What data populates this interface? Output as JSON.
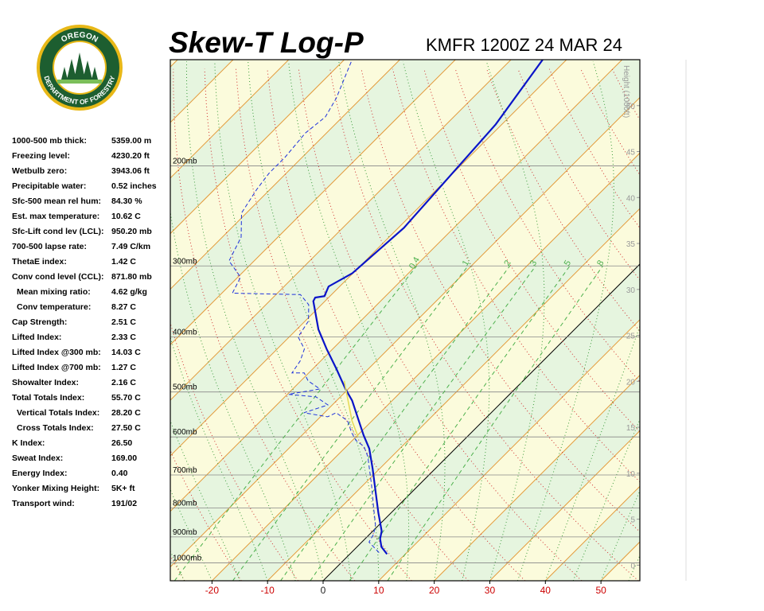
{
  "logo": {
    "top": "OREGON",
    "bottom": "DEPARTMENT OF FORESTRY"
  },
  "stats": [
    {
      "label": "1000-500 mb thick:",
      "value": "5359.00 m"
    },
    {
      "label": "Freezing level:",
      "value": "4230.20 ft"
    },
    {
      "label": "Wetbulb zero:",
      "value": "3943.06 ft"
    },
    {
      "label": "Precipitable water:",
      "value": "0.52 inches"
    },
    {
      "label": "Sfc-500 mean rel hum:",
      "value": "84.30 %"
    },
    {
      "label": "Est. max temperature:",
      "value": "10.62 C"
    },
    {
      "label": "Sfc-Lift cond lev (LCL):",
      "value": "950.20 mb"
    },
    {
      "label": "700-500 lapse rate:",
      "value": "7.49 C/km"
    },
    {
      "label": "ThetaE index:",
      "value": "1.42 C"
    },
    {
      "label": "Conv cond level (CCL):",
      "value": "871.80 mb"
    },
    {
      "label": "Mean mixing ratio:",
      "value": "4.62 g/kg"
    },
    {
      "label": "Conv temperature:",
      "value": "8.27 C"
    },
    {
      "label": "Cap Strength:",
      "value": "2.51 C"
    },
    {
      "label": "Lifted Index:",
      "value": "2.33 C"
    },
    {
      "label": "Lifted Index @300 mb:",
      "value": "14.03 C"
    },
    {
      "label": "Lifted Index @700 mb:",
      "value": "1.27 C"
    },
    {
      "label": "Showalter Index:",
      "value": "2.16 C"
    },
    {
      "label": "Total Totals Index:",
      "value": "55.70 C"
    },
    {
      "label": "Vertical Totals Index:",
      "value": "28.20 C"
    },
    {
      "label": "Cross Totals Index:",
      "value": "27.50 C"
    },
    {
      "label": "K Index:",
      "value": "26.50"
    },
    {
      "label": "Sweat Index:",
      "value": "169.00"
    },
    {
      "label": "Energy Index:",
      "value": "0.40"
    },
    {
      "label": "Yonker Mixing Height:",
      "value": "5K+ ft"
    },
    {
      "label": "Transport wind:",
      "value": "191/02"
    }
  ],
  "chart_data": {
    "type": "skewt",
    "title": "Skew-T Log-P",
    "subtitle": "KMFR 1200Z 24 MAR 24",
    "y2label": "Height (1000ft)",
    "xlim": [
      -27.5,
      57
    ],
    "xticks": [
      -20,
      -10,
      0,
      10,
      20,
      30,
      40,
      50
    ],
    "ylim": [
      1075,
      130
    ],
    "log_y": true,
    "yticks": [
      {
        "value": 1000,
        "label": "1000mb"
      },
      {
        "value": 900,
        "label": "900mb"
      },
      {
        "value": 800,
        "label": "800mb"
      },
      {
        "value": 700,
        "label": "700mb"
      },
      {
        "value": 600,
        "label": "600mb"
      },
      {
        "value": 500,
        "label": "500mb"
      },
      {
        "value": 400,
        "label": "400mb"
      },
      {
        "value": 300,
        "label": "300mb"
      },
      {
        "value": 200,
        "label": "200mb"
      }
    ],
    "y2lim": [
      -1.7,
      55
    ],
    "y2ticks": [
      0,
      5,
      10,
      15,
      20,
      25,
      30,
      35,
      40,
      45,
      50
    ],
    "mixing_ratios": [
      0.4,
      1,
      2,
      3,
      5,
      8
    ],
    "band_colors": [
      "#fbfbdc",
      "#e6f5df"
    ],
    "isotherm_color": "#e39a3a",
    "dry_adiabat_color": "#d03030",
    "moist_adiabat_color": "#3a9a3a",
    "mixing_ratio_color": "#4cb04c",
    "series": [
      {
        "color": "#0a14c8",
        "x": [
          6.7,
          4.4,
          2.7,
          1.6,
          -2.3,
          -6.4,
          -11.3,
          -15.5,
          -18.9,
          -22.8,
          -27.2,
          -30.5,
          -35.8,
          -41.1,
          -46.1,
          -52.1,
          -52.4,
          -51.0,
          -52.0,
          -50.1,
          -49.0,
          -49.1,
          -50.1,
          -51.1,
          -54.3
        ],
        "values": [
          965,
          937,
          907,
          879,
          816,
          752,
          682,
          629,
          596,
          558,
          518,
          494,
          455,
          420,
          388,
          346,
          341,
          339,
          326,
          309,
          257,
          252,
          206,
          169,
          130
        ]
      },
      {
        "color": "#1e32dc",
        "x": [
          5.0,
          1.3,
          0.7,
          -0.7,
          -3.9,
          -8.6,
          -14.3,
          -16.9,
          -19.3,
          -21.5,
          -24.4,
          -27.9,
          -28.7,
          -33.7,
          -30.8,
          -34.4,
          -39.8,
          -35.1,
          -38.7,
          -40.8,
          -43.0,
          -43.7,
          -45.1,
          -48.4,
          -49.4,
          -52.3,
          -55.6,
          -68.1,
          -69.5,
          -74.5,
          -76.6,
          -80.9,
          -82.4,
          -83.1,
          -83.1,
          -83.8,
          -83.1,
          -84.5,
          -88.8
        ],
        "values": [
          959,
          919,
          890,
          856,
          802,
          728,
          650,
          623,
          609,
          590,
          562,
          544,
          553,
          544,
          527,
          510,
          505,
          494,
          478,
          463,
          463,
          441,
          420,
          400,
          375,
          351,
          337,
          335,
          314,
          294,
          267,
          242,
          220,
          206,
          193,
          175,
          164,
          152,
          129
        ]
      },
      {
        "color": "#e6dc5a",
        "x": [
          -19.6,
          -23.6,
          -32.2
        ],
        "values": [
          600,
          562,
          478
        ]
      }
    ]
  }
}
